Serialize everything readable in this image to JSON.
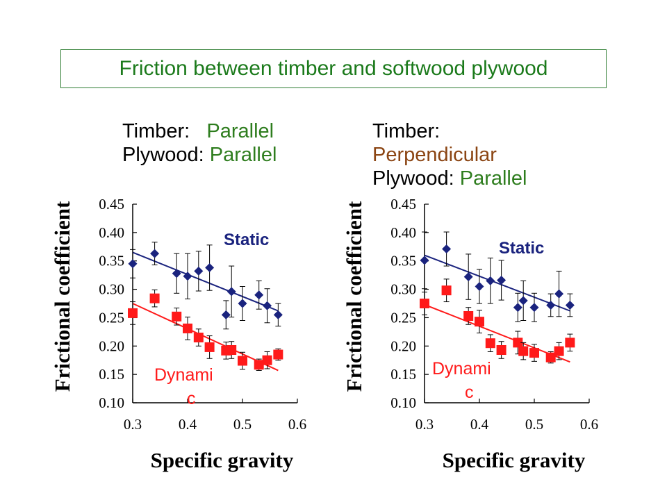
{
  "title": "Friction between timber and softwood plywood",
  "conditions": [
    {
      "line1_label": "Timber:",
      "line1_value": "Parallel",
      "line2_label": "Plywood:",
      "line2_value": "Parallel"
    },
    {
      "line1_label": "Timber:",
      "line2_value": "Perpendicular",
      "line3_label": "Plywood:",
      "line3_value": "Parallel"
    }
  ],
  "colors": {
    "static": "#1a237e",
    "dynamic": "#ff1a1a",
    "title": "#1b7a1b",
    "parallel": "#2e7d1e",
    "perpendicular": "#8b4513"
  },
  "chart_data": [
    {
      "type": "scatter",
      "xlabel": "Specific gravity",
      "ylabel": "Frictional coefficient",
      "xlim": [
        0.3,
        0.6
      ],
      "ylim": [
        0.1,
        0.45
      ],
      "xticks": [
        "0.3",
        "0.4",
        "0.5",
        "0.6"
      ],
      "yticks": [
        "0.10",
        "0.15",
        "0.20",
        "0.25",
        "0.30",
        "0.35",
        "0.40",
        "0.45"
      ],
      "series": [
        {
          "name": "Static",
          "marker": "diamond",
          "color": "#1a237e",
          "x": [
            0.3,
            0.34,
            0.38,
            0.4,
            0.42,
            0.44,
            0.47,
            0.48,
            0.5,
            0.53,
            0.545,
            0.565
          ],
          "y": [
            0.345,
            0.363,
            0.328,
            0.323,
            0.332,
            0.338,
            0.255,
            0.296,
            0.275,
            0.29,
            0.271,
            0.255
          ],
          "err": [
            0.025,
            0.02,
            0.035,
            0.04,
            0.035,
            0.04,
            0.025,
            0.045,
            0.03,
            0.025,
            0.03,
            0.02
          ],
          "fit": [
            0.365,
            0.262
          ]
        },
        {
          "name": "Dynamic",
          "marker": "square",
          "color": "#ff1a1a",
          "x": [
            0.3,
            0.34,
            0.38,
            0.4,
            0.42,
            0.44,
            0.47,
            0.48,
            0.5,
            0.53,
            0.545,
            0.565
          ],
          "y": [
            0.258,
            0.284,
            0.252,
            0.231,
            0.215,
            0.198,
            0.192,
            0.193,
            0.174,
            0.167,
            0.175,
            0.185
          ],
          "err": [
            0.02,
            0.015,
            0.015,
            0.02,
            0.015,
            0.02,
            0.015,
            0.015,
            0.015,
            0.01,
            0.015,
            0.01
          ],
          "fit": [
            0.275,
            0.157
          ]
        }
      ],
      "annotations": [
        "Static",
        "Dynami\nc"
      ]
    },
    {
      "type": "scatter",
      "xlabel": "Specific gravity",
      "ylabel": "Frictional coefficient",
      "xlim": [
        0.3,
        0.6
      ],
      "ylim": [
        0.1,
        0.45
      ],
      "xticks": [
        "0.3",
        "0.4",
        "0.5",
        "0.6"
      ],
      "yticks": [
        "0.10",
        "0.15",
        "0.20",
        "0.25",
        "0.30",
        "0.35",
        "0.40",
        "0.45"
      ],
      "series": [
        {
          "name": "Static",
          "marker": "diamond",
          "color": "#1a237e",
          "x": [
            0.3,
            0.34,
            0.38,
            0.4,
            0.42,
            0.44,
            0.47,
            0.48,
            0.5,
            0.53,
            0.545,
            0.565
          ],
          "y": [
            0.351,
            0.371,
            0.322,
            0.305,
            0.315,
            0.316,
            0.268,
            0.28,
            0.268,
            0.272,
            0.292,
            0.272
          ],
          "err": [
            0.05,
            0.03,
            0.04,
            0.03,
            0.04,
            0.035,
            0.025,
            0.035,
            0.025,
            0.02,
            0.04,
            0.02
          ],
          "fit": [
            0.36,
            0.262
          ]
        },
        {
          "name": "Dynamic",
          "marker": "square",
          "color": "#ff1a1a",
          "x": [
            0.3,
            0.34,
            0.38,
            0.4,
            0.42,
            0.44,
            0.47,
            0.48,
            0.5,
            0.53,
            0.545,
            0.565
          ],
          "y": [
            0.275,
            0.298,
            0.253,
            0.243,
            0.205,
            0.193,
            0.206,
            0.191,
            0.188,
            0.18,
            0.191,
            0.206
          ],
          "err": [
            0.02,
            0.02,
            0.015,
            0.02,
            0.015,
            0.015,
            0.02,
            0.015,
            0.015,
            0.01,
            0.015,
            0.015
          ],
          "fit": [
            0.273,
            0.172
          ]
        }
      ],
      "annotations": [
        "Static",
        "Dynami\nc"
      ]
    }
  ]
}
